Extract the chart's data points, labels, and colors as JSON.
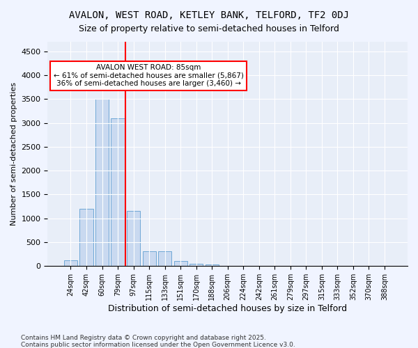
{
  "title1": "AVALON, WEST ROAD, KETLEY BANK, TELFORD, TF2 0DJ",
  "title2": "Size of property relative to semi-detached houses in Telford",
  "xlabel": "Distribution of semi-detached houses by size in Telford",
  "ylabel": "Number of semi-detached properties",
  "categories": [
    "24sqm",
    "42sqm",
    "60sqm",
    "79sqm",
    "97sqm",
    "115sqm",
    "133sqm",
    "151sqm",
    "170sqm",
    "188sqm",
    "206sqm",
    "224sqm",
    "242sqm",
    "261sqm",
    "279sqm",
    "297sqm",
    "315sqm",
    "333sqm",
    "352sqm",
    "370sqm",
    "388sqm"
  ],
  "values": [
    120,
    1200,
    3500,
    3100,
    1150,
    310,
    310,
    110,
    55,
    30,
    5,
    2,
    1,
    0,
    0,
    0,
    0,
    0,
    0,
    0,
    0
  ],
  "bar_color": "#c9d9f0",
  "bar_edge_color": "#6fa8d6",
  "vline_x": 4,
  "vline_color": "red",
  "annotation_title": "AVALON WEST ROAD: 85sqm",
  "annotation_line1": "← 61% of semi-detached houses are smaller (5,867)",
  "annotation_line2": "36% of semi-detached houses are larger (3,460) →",
  "annotation_box_color": "white",
  "annotation_box_edge": "red",
  "ylim": [
    0,
    4700
  ],
  "yticks": [
    0,
    500,
    1000,
    1500,
    2000,
    2500,
    3000,
    3500,
    4000,
    4500
  ],
  "footer1": "Contains HM Land Registry data © Crown copyright and database right 2025.",
  "footer2": "Contains public sector information licensed under the Open Government Licence v3.0.",
  "bg_color": "#f0f4ff",
  "plot_bg_color": "#e8eef8"
}
